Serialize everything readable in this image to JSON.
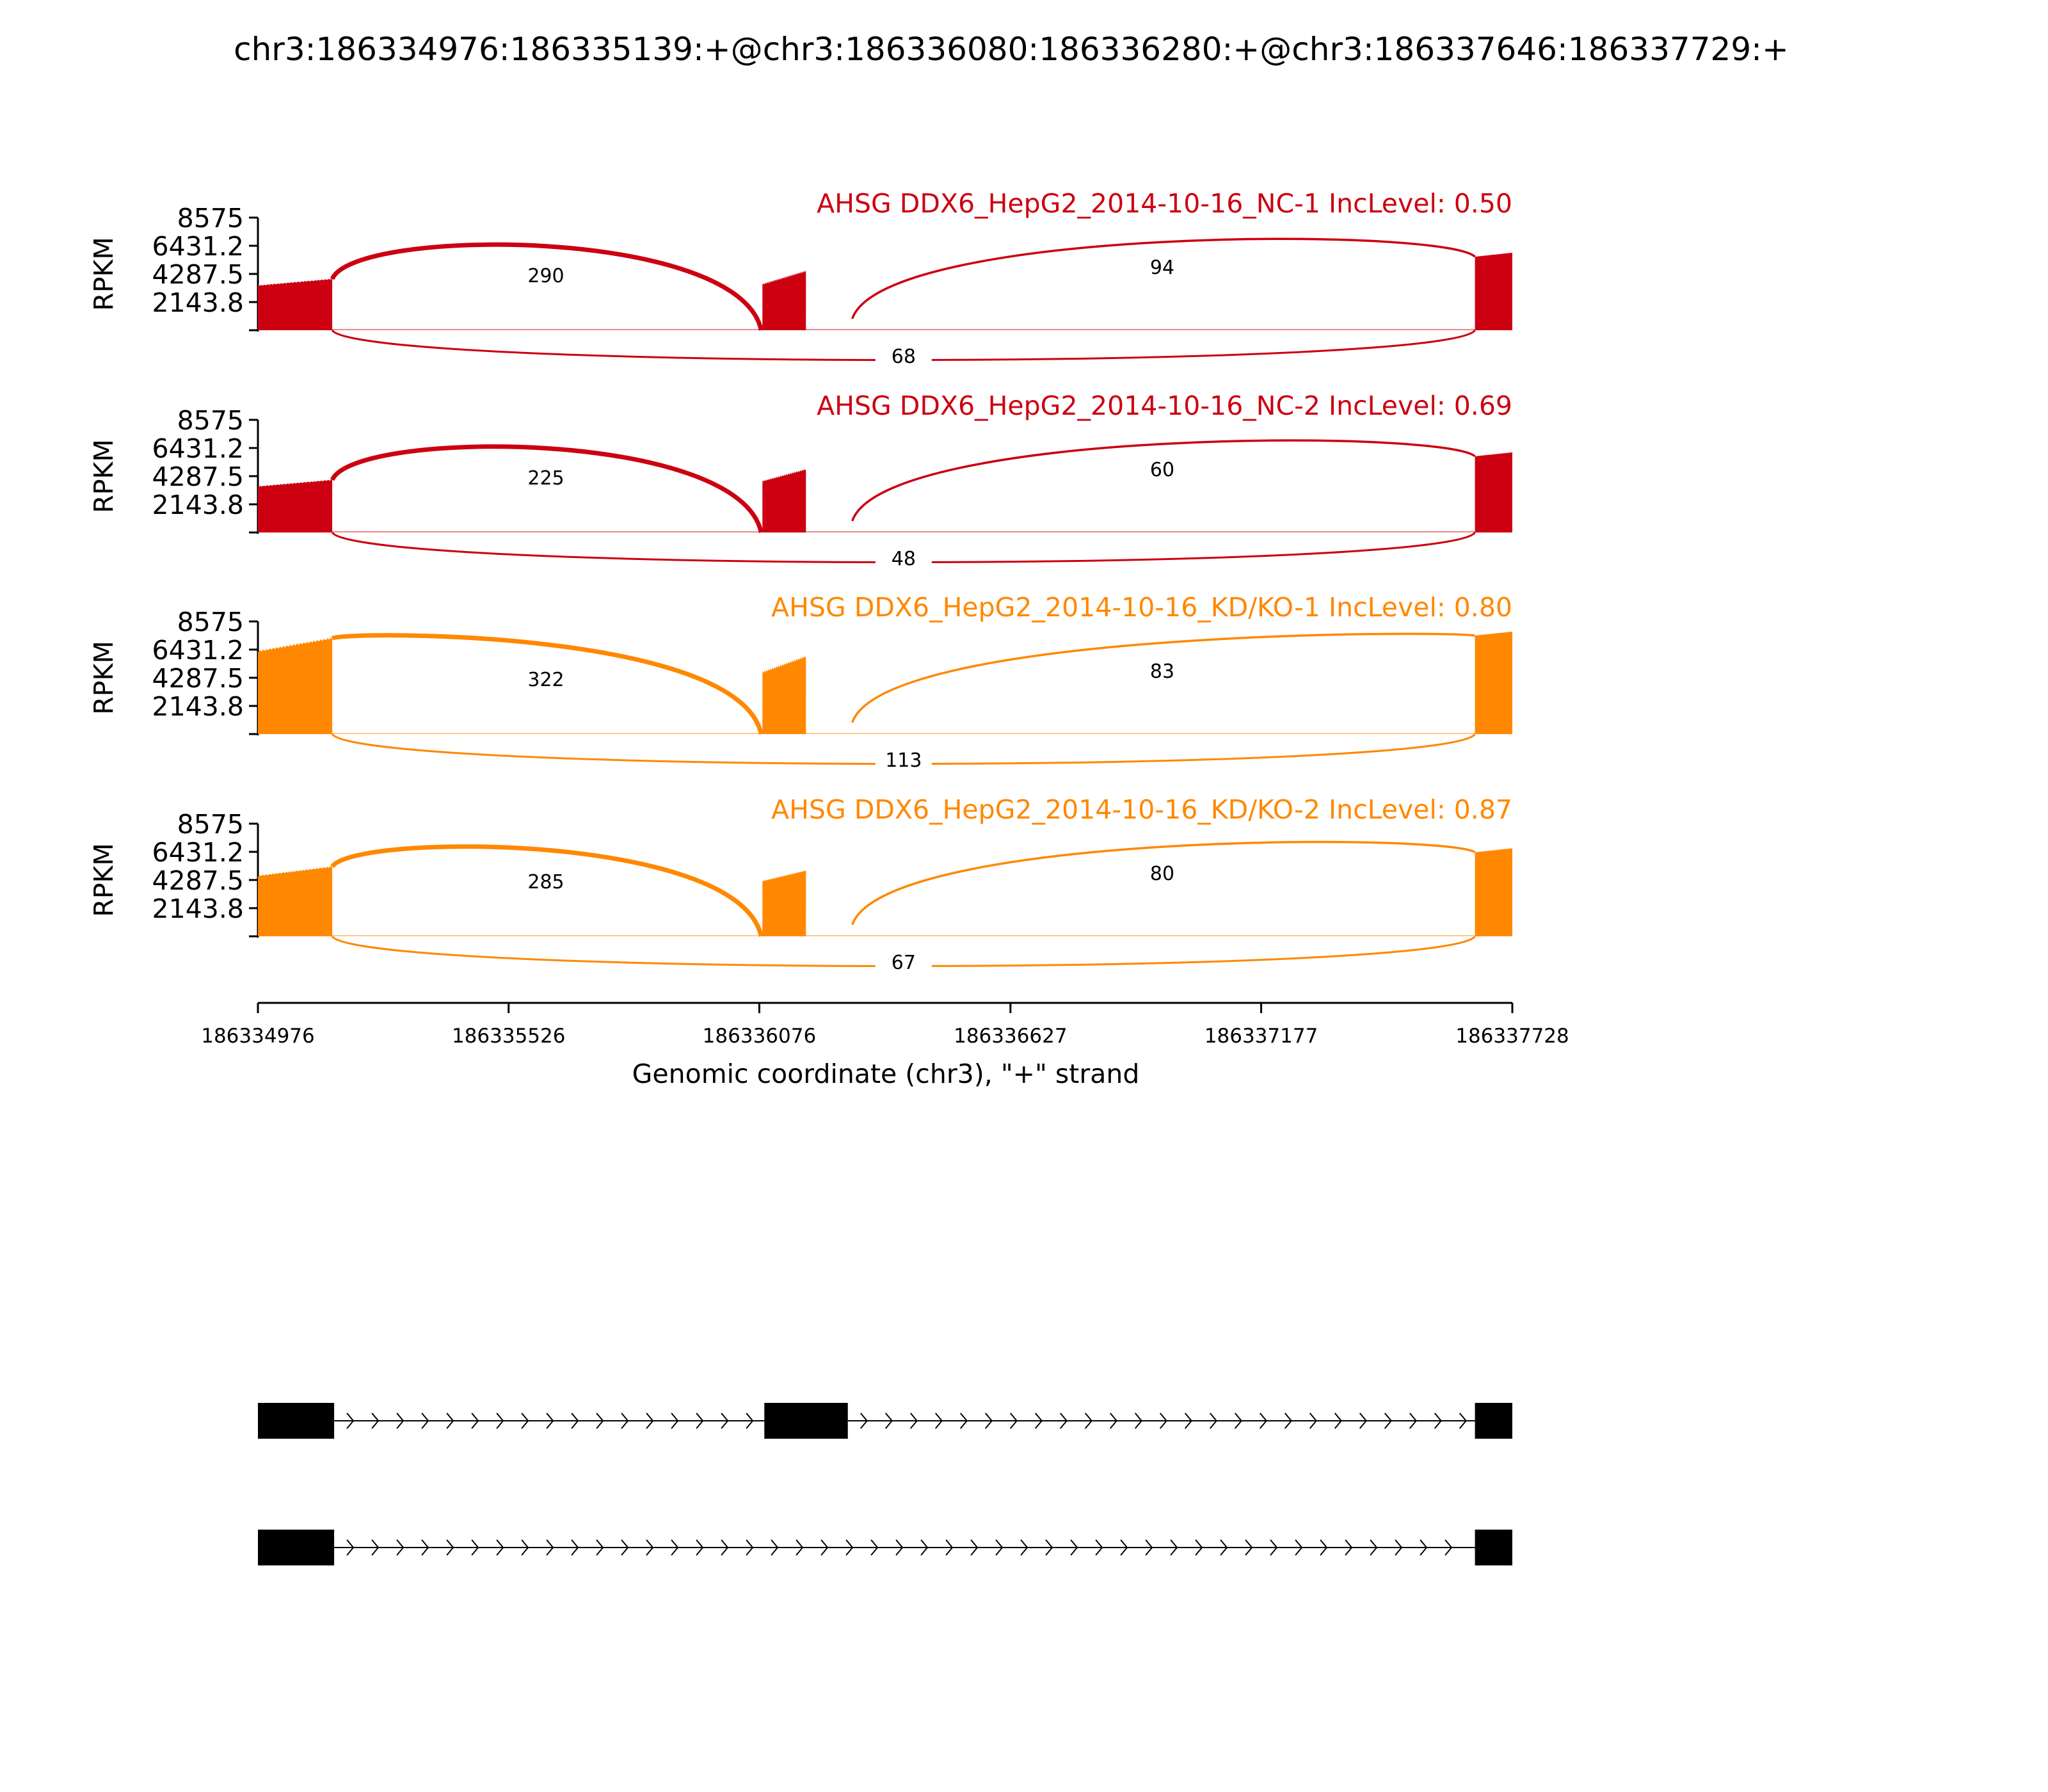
{
  "chart_data": {
    "type": "sashimi",
    "title": "chr3:186334976:186335139:+@chr3:186336080:186336280:+@chr3:186337646:186337729:+",
    "xlabel": "Genomic coordinate (chr3), \"+\" strand",
    "ylabel": "RPKM",
    "xlim": [
      186334976,
      186337728
    ],
    "x_ticks": [
      186334976,
      186335526,
      186336076,
      186336627,
      186337177,
      186337728
    ],
    "x_tick_labels": [
      "186334976",
      "186335526",
      "186336076",
      "186336627",
      "186337177",
      "186337728"
    ],
    "ylim": [
      0,
      8575
    ],
    "y_ticks": [
      2143.8,
      4287.5,
      6431.2,
      8575
    ],
    "y_tick_labels": [
      "2143.8",
      "4287.5",
      "6431.2",
      "8575"
    ],
    "exons": [
      {
        "start": 186334976,
        "end": 186335139
      },
      {
        "start": 186336080,
        "end": 186336280
      },
      {
        "start": 186337646,
        "end": 186337729
      }
    ],
    "colors": {
      "NC": "#cc0011",
      "KD": "#ff8800",
      "text": "#000000"
    },
    "series": [
      {
        "label": "AHSG DDX6_HepG2_2014-10-16_NC-1 IncLevel: 0.50",
        "group": "NC",
        "coverage": {
          "exon1": [
            3400,
            3900
          ],
          "exon2": [
            3500,
            4500
          ],
          "exon3": [
            5600,
            5900
          ]
        },
        "junctions": [
          {
            "from": 186335139,
            "to": 186336080,
            "count": "290",
            "position": "above"
          },
          {
            "from": 186336280,
            "to": 186337646,
            "count": "94",
            "position": "above"
          },
          {
            "from": 186335139,
            "to": 186337646,
            "count": "68",
            "position": "below"
          }
        ]
      },
      {
        "label": "AHSG DDX6_HepG2_2014-10-16_NC-2 IncLevel: 0.69",
        "group": "NC",
        "coverage": {
          "exon1": [
            3500,
            4000
          ],
          "exon2": [
            3900,
            4800
          ],
          "exon3": [
            5800,
            6100
          ]
        },
        "junctions": [
          {
            "from": 186335139,
            "to": 186336080,
            "count": "225",
            "position": "above"
          },
          {
            "from": 186336280,
            "to": 186337646,
            "count": "60",
            "position": "above"
          },
          {
            "from": 186335139,
            "to": 186337646,
            "count": "48",
            "position": "below"
          }
        ]
      },
      {
        "label": "AHSG DDX6_HepG2_2014-10-16_KD/KO-1 IncLevel: 0.80",
        "group": "KD",
        "coverage": {
          "exon1": [
            6300,
            7300
          ],
          "exon2": [
            4700,
            5900
          ],
          "exon3": [
            7500,
            7800
          ]
        },
        "junctions": [
          {
            "from": 186335139,
            "to": 186336080,
            "count": "322",
            "position": "above"
          },
          {
            "from": 186336280,
            "to": 186337646,
            "count": "83",
            "position": "above"
          },
          {
            "from": 186335139,
            "to": 186337646,
            "count": "113",
            "position": "below"
          }
        ]
      },
      {
        "label": "AHSG DDX6_HepG2_2014-10-16_KD/KO-2 IncLevel: 0.87",
        "group": "KD",
        "coverage": {
          "exon1": [
            4600,
            5300
          ],
          "exon2": [
            4200,
            5000
          ],
          "exon3": [
            6400,
            6700
          ]
        },
        "junctions": [
          {
            "from": 186335139,
            "to": 186336080,
            "count": "285",
            "position": "above"
          },
          {
            "from": 186336280,
            "to": 186337646,
            "count": "80",
            "position": "above"
          },
          {
            "from": 186335139,
            "to": 186337646,
            "count": "67",
            "position": "below"
          }
        ]
      }
    ],
    "isoforms": [
      {
        "exons": [
          0,
          1,
          2
        ]
      },
      {
        "exons": [
          0,
          2
        ]
      }
    ]
  }
}
